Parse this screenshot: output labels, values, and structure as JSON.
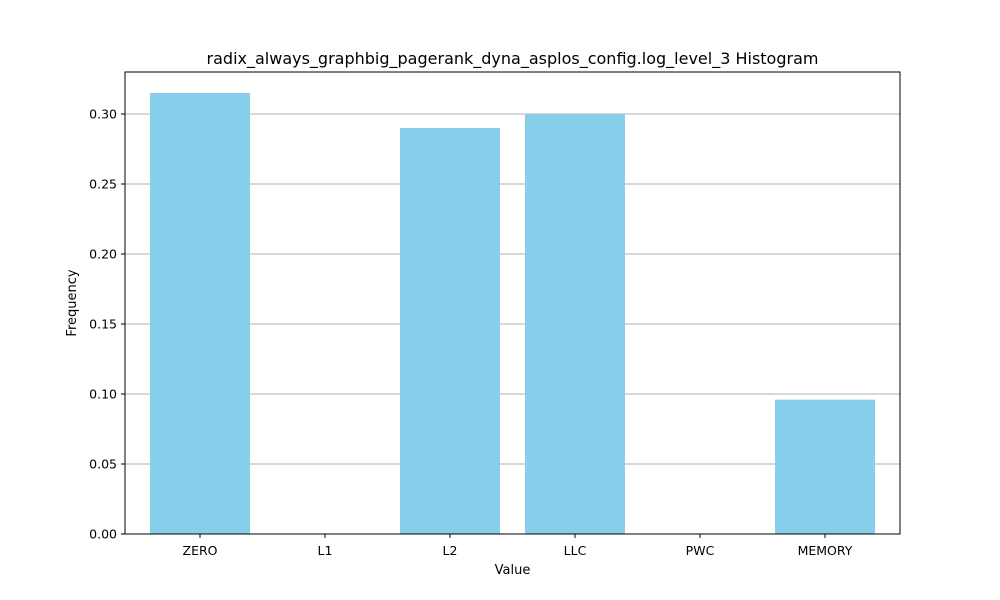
{
  "chart_data": {
    "type": "bar",
    "title": "radix_always_graphbig_pagerank_dyna_asplos_config.log_level_3 Histogram",
    "xlabel": "Value",
    "ylabel": "Frequency",
    "categories": [
      "ZERO",
      "L1",
      "L2",
      "LLC",
      "PWC",
      "MEMORY"
    ],
    "values": [
      0.315,
      0.0,
      0.29,
      0.3,
      0.0,
      0.096
    ],
    "ylim": [
      0,
      0.33
    ],
    "yticks": [
      "0.00",
      "0.05",
      "0.10",
      "0.15",
      "0.20",
      "0.25",
      "0.30"
    ],
    "grid": "y",
    "bar_color": "#87CEEB"
  }
}
